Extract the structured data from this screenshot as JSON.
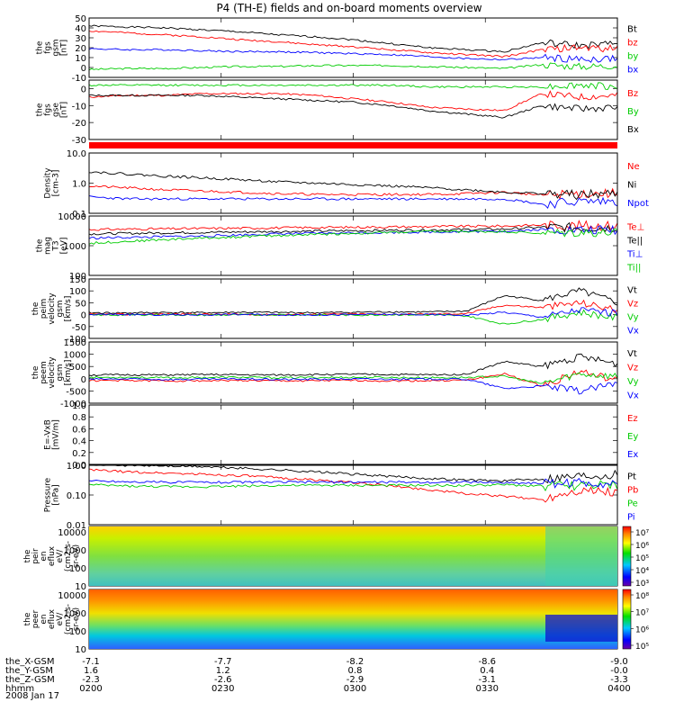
{
  "title": "P4 (TH-E) fields and on-board moments overview",
  "date": "2008 Jan 17",
  "x_axis": {
    "ticks": [
      "0200",
      "0230",
      "0300",
      "0330",
      "0400"
    ],
    "rows": [
      {
        "label": "the_X-GSM",
        "values": [
          "-7.1",
          "-7.7",
          "-8.2",
          "-8.6",
          "-9.0"
        ]
      },
      {
        "label": "the_Y-GSM",
        "values": [
          "1.6",
          "1.2",
          "0.8",
          "0.4",
          "-0.0"
        ]
      },
      {
        "label": "the_Z-GSM",
        "values": [
          "-2.3",
          "-2.6",
          "-2.9",
          "-3.1",
          "-3.3"
        ]
      },
      {
        "label": "hhmm",
        "values": [
          "0200",
          "0230",
          "0300",
          "0330",
          "0400"
        ]
      }
    ]
  },
  "colorbar_ticks_1": [
    "10⁷",
    "10⁶",
    "10⁵",
    "10⁴",
    "10³"
  ],
  "colorbar_ticks_2": [
    "10⁸",
    "10⁷",
    "10⁶",
    "10⁵"
  ],
  "chart_data": [
    {
      "type": "line",
      "id": "fgs_gsm",
      "ylabel": [
        "the",
        "fgs",
        "gsm",
        "[nT]"
      ],
      "ylim": [
        -10,
        50
      ],
      "ticks": [
        "50",
        "40",
        "30",
        "20",
        "10",
        "0",
        "-10"
      ],
      "legend": [
        "Bt",
        "bz",
        "by",
        "bx"
      ],
      "series": [
        {
          "name": "Bt",
          "color": "#000000",
          "values": [
            42,
            41,
            40,
            38,
            36,
            33,
            31,
            28,
            24,
            20,
            18,
            16,
            25,
            22,
            24
          ]
        },
        {
          "name": "bz",
          "color": "#ff0000",
          "values": [
            37,
            35,
            33,
            31,
            28,
            26,
            23,
            21,
            18,
            15,
            13,
            11,
            18,
            20,
            19
          ]
        },
        {
          "name": "by",
          "color": "#00cc00",
          "values": [
            -2,
            -1,
            -1,
            0,
            1,
            1,
            2,
            2,
            2,
            1,
            0,
            -1,
            3,
            1,
            2
          ]
        },
        {
          "name": "bx",
          "color": "#0000ff",
          "values": [
            19,
            18,
            18,
            17,
            16,
            16,
            15,
            14,
            13,
            11,
            9,
            8,
            10,
            8,
            9
          ]
        }
      ]
    },
    {
      "type": "line",
      "id": "fgs_gse",
      "ylabel": [
        "the",
        "fgs",
        "gse",
        "[nT]"
      ],
      "ylim": [
        -30,
        5
      ],
      "ticks": [
        "0",
        "-10",
        "-20",
        "-30"
      ],
      "legend": [
        "Bz",
        "By",
        "Bx"
      ],
      "series": [
        {
          "name": "Bz",
          "color": "#ff0000",
          "values": [
            -5,
            -4,
            -4,
            -3,
            -3,
            -3,
            -4,
            -6,
            -8,
            -11,
            -12,
            -13,
            -3,
            -5,
            -4
          ]
        },
        {
          "name": "By",
          "color": "#00cc00",
          "values": [
            2,
            2,
            2,
            2,
            2,
            2,
            2,
            2,
            2,
            1,
            1,
            1,
            1,
            2,
            1
          ]
        },
        {
          "name": "Bx",
          "color": "#000000",
          "values": [
            -4,
            -4,
            -4,
            -4,
            -5,
            -6,
            -7,
            -8,
            -10,
            -13,
            -15,
            -17,
            -10,
            -12,
            -11
          ]
        }
      ]
    },
    {
      "type": "line",
      "id": "density",
      "log": true,
      "ylabel": [
        "Density",
        "[cm-3]"
      ],
      "ylim": [
        0.1,
        10
      ],
      "ticks": [
        "10.0",
        "1.0",
        "0.1"
      ],
      "legend": [
        "Ne",
        "Ni",
        "Npot"
      ],
      "series": [
        {
          "name": "Ne",
          "color": "#ff0000",
          "values": [
            0.8,
            0.7,
            0.6,
            0.55,
            0.5,
            0.45,
            0.42,
            0.42,
            0.42,
            0.42,
            0.45,
            0.5,
            0.4,
            0.45,
            0.45
          ]
        },
        {
          "name": "Ni",
          "color": "#000000",
          "values": [
            2.4,
            2.0,
            1.7,
            1.5,
            1.3,
            1.1,
            1.0,
            0.9,
            0.8,
            0.7,
            0.6,
            0.5,
            0.45,
            0.4,
            0.45
          ]
        },
        {
          "name": "Npot",
          "color": "#0000ff",
          "values": [
            0.35,
            0.3,
            0.3,
            0.3,
            0.3,
            0.3,
            0.3,
            0.3,
            0.3,
            0.3,
            0.3,
            0.3,
            0.2,
            0.25,
            0.25
          ]
        }
      ]
    },
    {
      "type": "line",
      "id": "temperature",
      "log": true,
      "ylabel": [
        "the",
        "mag",
        "T3",
        "[eV]"
      ],
      "ylim": [
        100,
        10000
      ],
      "ticks": [
        "10000",
        "1000",
        "100"
      ],
      "legend": [
        "Te⊥",
        "Te||",
        "Ti⊥",
        "Ti||"
      ],
      "series": [
        {
          "name": "Te⊥",
          "color": "#ff0000",
          "values": [
            3500,
            3600,
            3700,
            3800,
            3900,
            4000,
            4100,
            4200,
            4300,
            4400,
            4500,
            4600,
            5000,
            4800,
            4800
          ]
        },
        {
          "name": "Te||",
          "color": "#000000",
          "values": [
            2500,
            2600,
            2700,
            2800,
            2900,
            3000,
            3100,
            3200,
            3300,
            3400,
            3500,
            3600,
            4200,
            4000,
            4100
          ]
        },
        {
          "name": "Ti⊥",
          "color": "#0000ff",
          "values": [
            1800,
            1900,
            2000,
            2100,
            2300,
            2500,
            2600,
            2700,
            2800,
            2900,
            3000,
            3100,
            3500,
            3300,
            3400
          ]
        },
        {
          "name": "Ti||",
          "color": "#00cc00",
          "values": [
            1200,
            1400,
            1600,
            1800,
            2000,
            2200,
            2400,
            2600,
            2800,
            3000,
            3000,
            3000,
            2600,
            2800,
            2700
          ]
        }
      ]
    },
    {
      "type": "line",
      "id": "peim_velocity",
      "ylabel": [
        "the",
        "peim",
        "velocity",
        "gsm",
        "[km/s]"
      ],
      "ylim": [
        -100,
        150
      ],
      "ticks": [
        "150",
        "100",
        "50",
        "0",
        "-50",
        "-100"
      ],
      "legend": [
        "Vt",
        "Vz",
        "Vy",
        "Vx"
      ],
      "series": [
        {
          "name": "Vt",
          "color": "#000000",
          "values": [
            8,
            7,
            9,
            8,
            10,
            9,
            8,
            10,
            12,
            11,
            15,
            80,
            60,
            100,
            50
          ]
        },
        {
          "name": "Vz",
          "color": "#ff0000",
          "values": [
            2,
            1,
            3,
            2,
            1,
            0,
            2,
            3,
            1,
            2,
            5,
            40,
            30,
            50,
            20
          ]
        },
        {
          "name": "Vy",
          "color": "#00cc00",
          "values": [
            -2,
            -1,
            0,
            -2,
            -1,
            0,
            -1,
            -2,
            0,
            -1,
            -5,
            -40,
            -20,
            10,
            -15
          ]
        },
        {
          "name": "Vx",
          "color": "#0000ff",
          "values": [
            0,
            1,
            -1,
            0,
            1,
            0,
            -1,
            0,
            1,
            0,
            -2,
            10,
            -10,
            20,
            5
          ]
        }
      ]
    },
    {
      "type": "line",
      "id": "peem_velocity",
      "ylabel": [
        "the",
        "peem",
        "velocity",
        "gsm",
        "[km/s]"
      ],
      "ylim": [
        -1000,
        1500
      ],
      "ticks": [
        "1500",
        "1000",
        "500",
        "0",
        "-500",
        "-1000"
      ],
      "legend": [
        "Vt",
        "Vz",
        "Vy",
        "Vx"
      ],
      "series": [
        {
          "name": "Vt",
          "color": "#000000",
          "values": [
            150,
            160,
            150,
            170,
            160,
            150,
            170,
            180,
            170,
            160,
            180,
            700,
            500,
            900,
            600
          ]
        },
        {
          "name": "Vz",
          "color": "#ff0000",
          "values": [
            -80,
            -70,
            -90,
            -80,
            -70,
            -90,
            -80,
            -70,
            -90,
            -80,
            -60,
            200,
            -300,
            300,
            -100
          ]
        },
        {
          "name": "Vy",
          "color": "#00cc00",
          "values": [
            50,
            60,
            40,
            50,
            60,
            40,
            50,
            60,
            50,
            40,
            50,
            100,
            -200,
            200,
            100
          ]
        },
        {
          "name": "Vx",
          "color": "#0000ff",
          "values": [
            -20,
            -10,
            -30,
            -20,
            -10,
            -30,
            -20,
            -10,
            -20,
            -10,
            -20,
            -400,
            -300,
            -500,
            -200
          ]
        }
      ]
    },
    {
      "type": "line",
      "id": "efield",
      "ylabel": [
        "E=-VxB",
        "[mV/m]"
      ],
      "ylim": [
        0,
        1
      ],
      "ticks": [
        "1.0",
        "0.8",
        "0.6",
        "0.4",
        "0.2",
        "0.0"
      ],
      "legend": [
        "Ez",
        "Ey",
        "Ex"
      ],
      "series": []
    },
    {
      "type": "line",
      "id": "pressure",
      "log": true,
      "ylabel": [
        "Pressure",
        "[nPa]"
      ],
      "ylim": [
        0.01,
        1
      ],
      "ticks": [
        "1.00",
        "0.10",
        "0.01"
      ],
      "legend": [
        "Pt",
        "Pb",
        "Pe",
        "Pi"
      ],
      "series": [
        {
          "name": "Pt",
          "color": "#000000",
          "values": [
            1.1,
            1.0,
            0.95,
            0.9,
            0.8,
            0.7,
            0.6,
            0.5,
            0.42,
            0.36,
            0.32,
            0.3,
            0.35,
            0.45,
            0.5
          ]
        },
        {
          "name": "Pb",
          "color": "#ff0000",
          "values": [
            0.7,
            0.6,
            0.55,
            0.5,
            0.45,
            0.38,
            0.32,
            0.26,
            0.2,
            0.15,
            0.11,
            0.09,
            0.07,
            0.15,
            0.12
          ]
        },
        {
          "name": "Pe",
          "color": "#00cc00",
          "values": [
            0.22,
            0.2,
            0.19,
            0.19,
            0.2,
            0.21,
            0.21,
            0.21,
            0.21,
            0.21,
            0.21,
            0.22,
            0.2,
            0.21,
            0.21
          ]
        },
        {
          "name": "Pi",
          "color": "#0000ff",
          "values": [
            0.3,
            0.28,
            0.27,
            0.27,
            0.27,
            0.27,
            0.27,
            0.27,
            0.27,
            0.27,
            0.27,
            0.26,
            0.25,
            0.26,
            0.25
          ]
        }
      ]
    },
    {
      "type": "heatmap",
      "id": "peir_spec",
      "ylabel": [
        "the",
        "peir",
        "en",
        "eflux",
        "eV/",
        "(cm2-s-",
        "sr-eV)"
      ],
      "ylim": [
        10,
        20000
      ],
      "ticks": [
        "10000",
        "1000",
        "100",
        "10"
      ]
    },
    {
      "type": "heatmap",
      "id": "peer_spec",
      "ylabel": [
        "the",
        "peer",
        "en",
        "eflux",
        "eV/",
        "(cm2-s-",
        "sr-eV)"
      ],
      "ylim": [
        10,
        20000
      ],
      "ticks": [
        "10000",
        "1000",
        "100",
        "10"
      ]
    }
  ]
}
